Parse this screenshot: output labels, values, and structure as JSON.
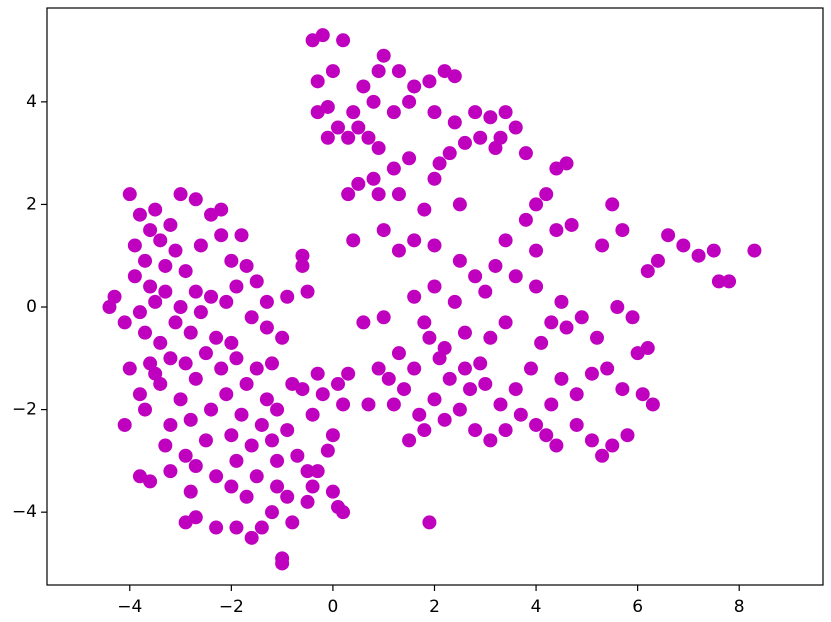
{
  "chart_data": {
    "type": "scatter",
    "color": "#bf00bf",
    "xlim": [
      -5.63,
      9.65
    ],
    "ylim": [
      -5.42,
      5.83
    ],
    "xticks": [
      {
        "value": -4,
        "label": "−4"
      },
      {
        "value": -2,
        "label": "−2"
      },
      0,
      2,
      4,
      6,
      8
    ],
    "yticks": [
      {
        "value": -4,
        "label": "−4"
      },
      {
        "value": -2,
        "label": "−2"
      },
      0,
      2,
      4
    ],
    "x": [
      -3.8,
      -3.6,
      -3.9,
      -3.5,
      -3.7,
      -3.4,
      -3.2,
      -3.9,
      -3.6,
      -3.3,
      -3.1,
      -4.0,
      -3.0,
      -2.7,
      -2.4,
      -2.2,
      -2.6,
      -2.9,
      -3.5,
      -3.8,
      -4.3,
      -4.4,
      -4.1,
      -3.7,
      -3.4,
      -3.1,
      -2.8,
      -2.6,
      -2.4,
      -2.1,
      -2.3,
      -2.5,
      -2.9,
      -3.2,
      -3.6,
      -4.0,
      -3.8,
      -3.4,
      -3.0,
      -2.7,
      -2.2,
      -1.9,
      -1.7,
      -1.5,
      -1.3,
      -1.1,
      -1.4,
      -1.8,
      -2.1,
      -2.4,
      -2.8,
      -3.2,
      -3.7,
      -4.1,
      -3.3,
      -2.9,
      -2.5,
      -2.0,
      -1.6,
      -1.2,
      -0.9,
      -0.7,
      -0.5,
      -0.4,
      -0.6,
      -0.2,
      0.1,
      0.0,
      -0.8,
      -1.0,
      -1.3,
      -1.6,
      -1.9,
      -2.0,
      -1.7,
      -2.2,
      -1.8,
      -1.5,
      -1.3,
      -0.9,
      -0.6,
      -0.6,
      -0.5,
      -1.1,
      -1.5,
      -1.9,
      -2.3,
      -2.7,
      -3.2,
      -3.6,
      -3.8,
      -2.8,
      -2.9,
      -2.7,
      -2.3,
      -1.9,
      -1.6,
      -1.4,
      -1.0,
      -1.0,
      -0.8,
      -1.2,
      -0.9,
      -0.4,
      -0.3,
      -0.5,
      0.0,
      0.1,
      0.2,
      -1.1,
      -1.7,
      -2.0,
      -3.5,
      -3.3,
      -2.7,
      -3.0,
      -2.0,
      -1.2,
      -0.3,
      0.2,
      -0.1,
      -0.4,
      -0.2,
      0.2,
      0.0,
      -0.3,
      0.6,
      0.9,
      1.0,
      1.3,
      1.6,
      1.9,
      2.2,
      2.4,
      1.5,
      1.2,
      0.8,
      0.4,
      -0.1,
      -0.3,
      0.1,
      0.5,
      0.3,
      -0.1,
      0.7,
      0.9,
      2.0,
      2.4,
      2.8,
      3.1,
      3.4,
      3.6,
      2.9,
      3.2,
      2.6,
      2.3,
      2.1,
      3.8,
      3.3,
      1.5,
      1.2,
      0.8,
      0.5,
      0.3,
      0.9,
      1.3,
      2.0,
      1.8,
      2.5,
      4.0,
      4.4,
      4.6,
      4.2,
      0.4,
      1.0,
      1.3,
      1.6,
      2.0,
      2.5,
      2.8,
      3.4,
      3.8,
      4.0,
      4.4,
      4.7,
      5.3,
      5.5,
      5.7,
      6.2,
      6.4,
      6.6,
      6.9,
      7.2,
      7.5,
      7.6,
      7.8,
      8.3,
      1.0,
      1.3,
      1.6,
      1.9,
      2.1,
      2.3,
      2.0,
      1.7,
      1.4,
      1.2,
      1.5,
      1.8,
      2.2,
      2.5,
      2.7,
      2.9,
      3.1,
      3.4,
      2.6,
      2.4,
      2.0,
      1.6,
      1.1,
      0.9,
      0.7,
      0.3,
      0.6,
      3.3,
      3.6,
      3.9,
      4.1,
      4.3,
      4.6,
      4.9,
      5.2,
      5.6,
      5.9,
      6.0,
      6.2,
      5.7,
      5.4,
      5.1,
      4.8,
      4.5,
      4.3,
      4.0,
      3.7,
      3.4,
      3.1,
      2.8,
      4.2,
      4.4,
      4.8,
      5.1,
      5.3,
      5.5,
      5.8,
      6.1,
      6.3,
      1.9,
      3.0,
      3.6,
      4.0,
      4.5,
      3.2,
      1.8,
      2.2,
      2.6,
      3.0
    ],
    "values": [
      1.8,
      1.5,
      1.2,
      1.9,
      0.9,
      1.3,
      1.6,
      0.6,
      0.4,
      0.8,
      1.1,
      2.2,
      2.2,
      2.1,
      1.8,
      1.9,
      1.2,
      0.7,
      0.1,
      -0.1,
      0.2,
      0.0,
      -0.3,
      -0.5,
      -0.7,
      -0.3,
      -0.5,
      -0.1,
      0.2,
      0.1,
      -0.6,
      -0.9,
      -1.1,
      -1.0,
      -1.1,
      -1.2,
      -1.7,
      -1.5,
      -1.8,
      -1.4,
      -1.2,
      -1.0,
      -1.5,
      -1.2,
      -1.8,
      -2.0,
      -2.3,
      -2.1,
      -1.7,
      -2.0,
      -2.2,
      -2.3,
      -2.0,
      -2.3,
      -2.7,
      -2.9,
      -2.6,
      -2.5,
      -2.7,
      -2.6,
      -2.4,
      -2.9,
      -3.2,
      -2.1,
      -1.6,
      -1.7,
      -1.5,
      -2.5,
      -1.5,
      -0.6,
      -0.4,
      -0.2,
      0.4,
      0.9,
      0.8,
      1.4,
      1.4,
      0.5,
      0.1,
      0.2,
      0.8,
      1.0,
      0.3,
      -3.0,
      -3.3,
      -3.0,
      -3.3,
      -3.1,
      -3.2,
      -3.4,
      -3.3,
      -3.6,
      -4.2,
      -4.1,
      -4.3,
      -4.3,
      -4.5,
      -4.3,
      -4.9,
      -5.0,
      -4.2,
      -4.0,
      -3.7,
      -3.5,
      -3.2,
      -3.8,
      -3.6,
      -3.9,
      -4.0,
      -3.5,
      -3.7,
      -3.5,
      -1.3,
      0.3,
      0.3,
      0.0,
      -0.7,
      -1.1,
      -1.3,
      -1.9,
      -2.8,
      5.2,
      5.3,
      5.2,
      4.6,
      4.4,
      4.3,
      4.6,
      4.9,
      4.6,
      4.3,
      4.4,
      4.6,
      4.5,
      4.0,
      3.8,
      4.0,
      3.8,
      3.9,
      3.8,
      3.5,
      3.5,
      3.3,
      3.3,
      3.3,
      3.1,
      3.8,
      3.6,
      3.8,
      3.7,
      3.8,
      3.5,
      3.3,
      3.1,
      3.2,
      3.0,
      2.8,
      3.0,
      3.3,
      2.9,
      2.7,
      2.5,
      2.4,
      2.2,
      2.2,
      2.2,
      2.5,
      1.9,
      2.0,
      2.0,
      2.7,
      2.8,
      2.2,
      1.3,
      1.5,
      1.1,
      1.3,
      1.2,
      0.9,
      0.6,
      1.3,
      1.7,
      1.1,
      1.5,
      1.6,
      1.2,
      2.0,
      1.5,
      0.7,
      0.9,
      1.4,
      1.2,
      1.0,
      1.1,
      0.5,
      0.5,
      1.1,
      -0.2,
      -0.9,
      -1.2,
      -0.6,
      -1.0,
      -1.4,
      -1.8,
      -2.1,
      -1.6,
      -1.9,
      -2.6,
      -2.4,
      -2.2,
      -2.0,
      -1.6,
      -1.1,
      -0.6,
      -0.3,
      -0.5,
      0.1,
      0.4,
      0.2,
      -1.4,
      -1.2,
      -1.9,
      -1.3,
      -0.3,
      -1.9,
      -1.6,
      -1.2,
      -0.7,
      -0.3,
      -0.4,
      -0.2,
      -0.6,
      0.0,
      -0.2,
      -0.9,
      -0.8,
      -1.6,
      -1.2,
      -1.3,
      -1.7,
      -1.4,
      -1.9,
      -2.3,
      -2.1,
      -2.4,
      -2.6,
      -2.4,
      -2.5,
      -2.7,
      -2.3,
      -2.6,
      -2.9,
      -2.7,
      -2.5,
      -1.7,
      -1.9,
      -4.2,
      0.3,
      0.6,
      0.4,
      0.1,
      0.8,
      -0.3,
      -0.8,
      -1.2,
      -1.5
    ]
  }
}
